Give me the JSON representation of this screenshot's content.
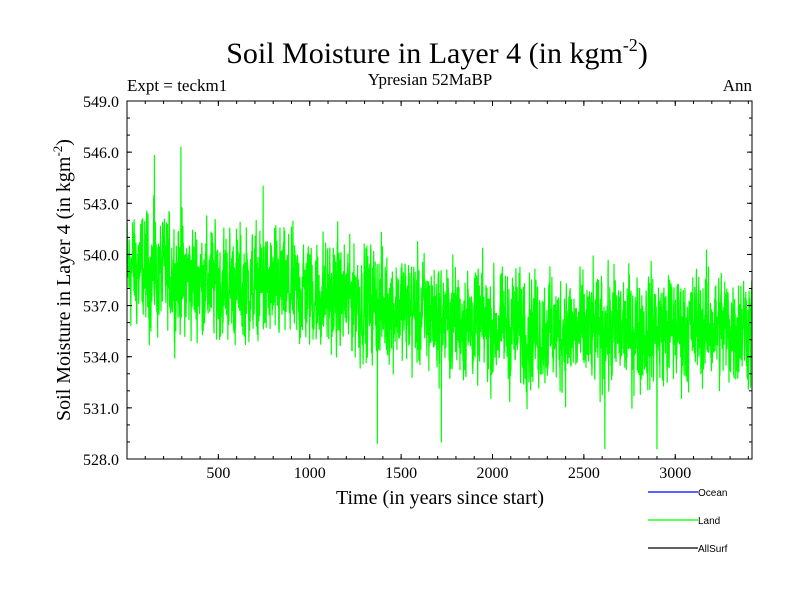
{
  "chart_data": {
    "type": "line",
    "title": "Soil Moisture in Layer 4 (in kgm",
    "title_superscript": "-2",
    "title_suffix": ")",
    "subtitle": "Ypresian  52MaBP",
    "left_label": "Expt = teckm1",
    "right_label": "Ann",
    "xlabel": "Time (in years since start)",
    "ylabel": "Soil Moisture in Layer 4 (in kgm",
    "ylabel_superscript": "-2",
    "ylabel_suffix": ")",
    "xlim": [
      0,
      3420
    ],
    "ylim": [
      528.0,
      549.0
    ],
    "xticks": [
      500,
      1000,
      1500,
      2000,
      2500,
      3000
    ],
    "yticks": [
      528.0,
      531.0,
      534.0,
      537.0,
      540.0,
      543.0,
      546.0,
      549.0
    ],
    "ytick_labels": [
      "528.0",
      "531.0",
      "534.0",
      "537.0",
      "540.0",
      "543.0",
      "546.0",
      "549.0"
    ],
    "legend": [
      {
        "name": "Ocean",
        "color": "#0000ff"
      },
      {
        "name": "Land",
        "color": "#00ff00"
      },
      {
        "name": "AllSurf",
        "color": "#000000"
      }
    ],
    "series": [
      {
        "name": "Land",
        "color": "#00ff00",
        "n_points": 3420,
        "trend_x": [
          0,
          500,
          1000,
          1500,
          2000,
          2500,
          3000,
          3420
        ],
        "trend_y": [
          539.2,
          538.3,
          537.8,
          536.8,
          535.8,
          535.4,
          535.7,
          535.8
        ],
        "noise_amplitude": 2.6,
        "range_min": 528.6,
        "range_max": 546.3,
        "notable_points": [
          {
            "x": 295,
            "y": 546.3
          },
          {
            "x": 150,
            "y": 545.8
          },
          {
            "x": 745,
            "y": 544.0
          },
          {
            "x": 1370,
            "y": 528.9
          },
          {
            "x": 1720,
            "y": 529.0
          },
          {
            "x": 2615,
            "y": 528.6
          },
          {
            "x": 2900,
            "y": 528.6
          }
        ]
      }
    ]
  }
}
